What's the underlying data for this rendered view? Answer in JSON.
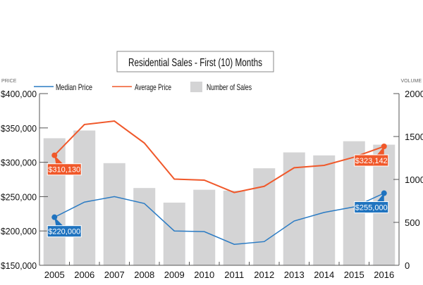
{
  "chart_data": {
    "type": "bar",
    "title": "Residential Sales - First (10) Months",
    "ylabel": "PRICE",
    "y2label": "VOLUME",
    "categories": [
      "2005",
      "2006",
      "2007",
      "2008",
      "2009",
      "2010",
      "2011",
      "2012",
      "2013",
      "2014",
      "2015",
      "2016"
    ],
    "ylim": [
      150000,
      400000
    ],
    "yticks": [
      150000,
      200000,
      250000,
      300000,
      350000,
      400000
    ],
    "ytick_labels": [
      "$150,000",
      "$200,000",
      "$250,000",
      "$300,000",
      "$350,000",
      "$400,000"
    ],
    "y2lim": [
      0,
      2000
    ],
    "y2ticks": [
      0,
      500,
      1000,
      1500,
      2000
    ],
    "y2tick_labels": [
      "0",
      "500",
      "1000",
      "1500",
      "2000"
    ],
    "legend_position": "top",
    "series": [
      {
        "name": "Median Price",
        "kind": "line",
        "axis": "left",
        "color": "#2a7bc4",
        "values": [
          220000,
          242000,
          250000,
          240000,
          200000,
          199000,
          180500,
          184500,
          214500,
          227000,
          235000,
          255000
        ]
      },
      {
        "name": "Average Price",
        "kind": "line",
        "axis": "left",
        "color": "#f0582a",
        "values": [
          310130,
          355000,
          360000,
          328000,
          275500,
          274000,
          256000,
          265000,
          292000,
          295500,
          307500,
          323142
        ]
      },
      {
        "name": "Number of Sales",
        "kind": "bar",
        "axis": "right",
        "color": "#d4d4d5",
        "values": [
          1480,
          1570,
          1190,
          900,
          730,
          880,
          870,
          1130,
          1315,
          1280,
          1445,
          1405
        ]
      }
    ],
    "annotations": [
      {
        "series": 1,
        "index": 0,
        "text": "$310,130",
        "color": "#f0582a"
      },
      {
        "series": 0,
        "index": 0,
        "text": "$220,000",
        "color": "#1f73bf"
      },
      {
        "series": 1,
        "index": 11,
        "text": "$323,142",
        "color": "#f0582a"
      },
      {
        "series": 0,
        "index": 11,
        "text": "$255,000",
        "color": "#1f73bf"
      }
    ]
  }
}
